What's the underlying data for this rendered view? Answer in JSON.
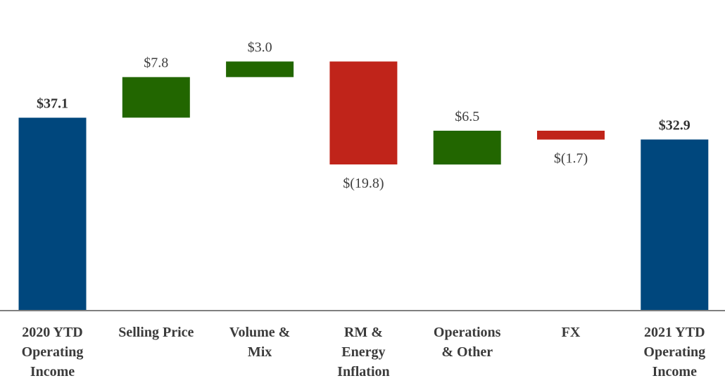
{
  "chart_data": {
    "type": "bar",
    "subtype": "waterfall",
    "categories": [
      [
        "2020 YTD",
        "Operating",
        "Income"
      ],
      [
        "Selling Price"
      ],
      [
        "Volume &",
        "Mix"
      ],
      [
        "RM &",
        "Energy",
        "Inflation"
      ],
      [
        "Operations",
        "& Other"
      ],
      [
        "FX"
      ],
      [
        "2021 YTD",
        "Operating",
        "Income"
      ]
    ],
    "steps": [
      {
        "kind": "total",
        "value": 37.1,
        "label": "$37.1"
      },
      {
        "kind": "delta",
        "value": 7.8,
        "label": "$7.8"
      },
      {
        "kind": "delta",
        "value": 3.0,
        "label": "$3.0"
      },
      {
        "kind": "delta",
        "value": -19.8,
        "label": "$(19.8)"
      },
      {
        "kind": "delta",
        "value": 6.5,
        "label": "$6.5"
      },
      {
        "kind": "delta",
        "value": -1.7,
        "label": "$(1.7)"
      },
      {
        "kind": "total",
        "value": 32.9,
        "label": "$32.9"
      }
    ],
    "ylim": [
      0,
      47.9
    ],
    "grid": false,
    "legend": "none",
    "colors": {
      "total": "#00477d",
      "increase": "#226600",
      "decrease": "#c0241a",
      "axis": "#7f7f7f"
    }
  }
}
